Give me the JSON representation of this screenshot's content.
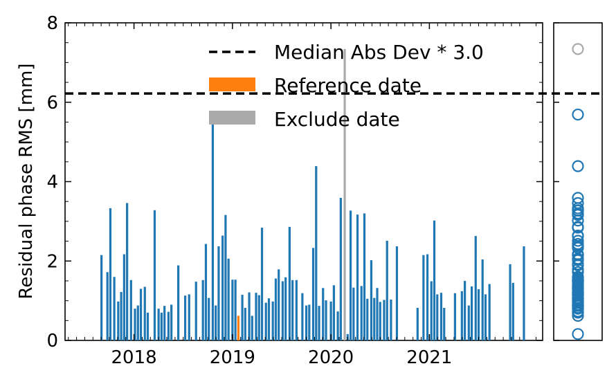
{
  "chart_data": {
    "type": "bar",
    "ylabel": "Residual phase RMS [mm]",
    "ylim": [
      0,
      8
    ],
    "yticks": [
      "0",
      "2",
      "4",
      "6",
      "8"
    ],
    "xlim": [
      2017.3,
      2022.15
    ],
    "xticks": [
      {
        "value": 2018.0,
        "label": "2018"
      },
      {
        "value": 2019.0,
        "label": "2019"
      },
      {
        "value": 2020.0,
        "label": "2020"
      },
      {
        "value": 2021.0,
        "label": "2021"
      }
    ],
    "threshold": 6.22,
    "legend_position": "top-right",
    "legend": [
      {
        "label": "Median Abs Dev * 3.0",
        "kind": "dashed-line",
        "color": "#000000"
      },
      {
        "label": "Reference date",
        "kind": "patch",
        "color": "#ff7f0e"
      },
      {
        "label": "Exclude date",
        "kind": "patch",
        "color": "#aaaaaa"
      }
    ],
    "colors": {
      "normal": "#1f77b4",
      "reference": "#ff7f0e",
      "exclude": "#aaaaaa"
    },
    "bars": [
      {
        "x": 2017.67,
        "y": 2.15
      },
      {
        "x": 2017.73,
        "y": 1.72
      },
      {
        "x": 2017.76,
        "y": 3.33
      },
      {
        "x": 2017.8,
        "y": 1.6
      },
      {
        "x": 2017.84,
        "y": 0.98
      },
      {
        "x": 2017.87,
        "y": 1.22
      },
      {
        "x": 2017.9,
        "y": 2.17
      },
      {
        "x": 2017.93,
        "y": 3.46
      },
      {
        "x": 2017.97,
        "y": 1.52
      },
      {
        "x": 2018.01,
        "y": 0.8
      },
      {
        "x": 2018.04,
        "y": 0.88
      },
      {
        "x": 2018.07,
        "y": 1.3
      },
      {
        "x": 2018.11,
        "y": 1.35
      },
      {
        "x": 2018.14,
        "y": 0.7
      },
      {
        "x": 2018.21,
        "y": 3.28
      },
      {
        "x": 2018.25,
        "y": 0.8
      },
      {
        "x": 2018.28,
        "y": 0.7
      },
      {
        "x": 2018.31,
        "y": 0.87
      },
      {
        "x": 2018.35,
        "y": 0.72
      },
      {
        "x": 2018.38,
        "y": 0.9
      },
      {
        "x": 2018.45,
        "y": 1.89
      },
      {
        "x": 2018.52,
        "y": 1.13
      },
      {
        "x": 2018.56,
        "y": 1.16
      },
      {
        "x": 2018.63,
        "y": 1.48
      },
      {
        "x": 2018.7,
        "y": 1.52
      },
      {
        "x": 2018.73,
        "y": 2.43
      },
      {
        "x": 2018.76,
        "y": 1.07
      },
      {
        "x": 2018.8,
        "y": 5.69
      },
      {
        "x": 2018.83,
        "y": 0.88
      },
      {
        "x": 2018.86,
        "y": 2.37
      },
      {
        "x": 2018.9,
        "y": 2.64
      },
      {
        "x": 2018.93,
        "y": 3.16
      },
      {
        "x": 2018.96,
        "y": 2.06
      },
      {
        "x": 2019.0,
        "y": 1.53
      },
      {
        "x": 2019.03,
        "y": 1.53
      },
      {
        "x": 2019.06,
        "y": 0.62,
        "kind": "reference"
      },
      {
        "x": 2019.1,
        "y": 1.15
      },
      {
        "x": 2019.13,
        "y": 0.82
      },
      {
        "x": 2019.17,
        "y": 1.21
      },
      {
        "x": 2019.2,
        "y": 0.62
      },
      {
        "x": 2019.24,
        "y": 1.2
      },
      {
        "x": 2019.27,
        "y": 1.14
      },
      {
        "x": 2019.3,
        "y": 2.84
      },
      {
        "x": 2019.34,
        "y": 0.95
      },
      {
        "x": 2019.37,
        "y": 1.06
      },
      {
        "x": 2019.41,
        "y": 0.98
      },
      {
        "x": 2019.44,
        "y": 1.56
      },
      {
        "x": 2019.47,
        "y": 1.79
      },
      {
        "x": 2019.51,
        "y": 1.49
      },
      {
        "x": 2019.54,
        "y": 1.59
      },
      {
        "x": 2019.58,
        "y": 2.86
      },
      {
        "x": 2019.61,
        "y": 1.52
      },
      {
        "x": 2019.65,
        "y": 1.52
      },
      {
        "x": 2019.71,
        "y": 1.19
      },
      {
        "x": 2019.75,
        "y": 0.88
      },
      {
        "x": 2019.78,
        "y": 0.9
      },
      {
        "x": 2019.82,
        "y": 2.33
      },
      {
        "x": 2019.85,
        "y": 4.39
      },
      {
        "x": 2019.88,
        "y": 0.87
      },
      {
        "x": 2019.92,
        "y": 1.32
      },
      {
        "x": 2019.95,
        "y": 1.01
      },
      {
        "x": 2020.0,
        "y": 0.98
      },
      {
        "x": 2020.03,
        "y": 1.39
      },
      {
        "x": 2020.07,
        "y": 0.73
      },
      {
        "x": 2020.1,
        "y": 3.59
      },
      {
        "x": 2020.14,
        "y": 7.34,
        "kind": "exclude"
      },
      {
        "x": 2020.17,
        "y": 0.16
      },
      {
        "x": 2020.2,
        "y": 3.27
      },
      {
        "x": 2020.23,
        "y": 1.33
      },
      {
        "x": 2020.27,
        "y": 3.17
      },
      {
        "x": 2020.31,
        "y": 1.37
      },
      {
        "x": 2020.34,
        "y": 3.2
      },
      {
        "x": 2020.37,
        "y": 1.05
      },
      {
        "x": 2020.41,
        "y": 2.02
      },
      {
        "x": 2020.44,
        "y": 1.07
      },
      {
        "x": 2020.47,
        "y": 1.32
      },
      {
        "x": 2020.5,
        "y": 0.97
      },
      {
        "x": 2020.54,
        "y": 1.02
      },
      {
        "x": 2020.57,
        "y": 2.51
      },
      {
        "x": 2020.61,
        "y": 1.03
      },
      {
        "x": 2020.67,
        "y": 2.37
      },
      {
        "x": 2020.88,
        "y": 0.82
      },
      {
        "x": 2020.94,
        "y": 2.15
      },
      {
        "x": 2020.98,
        "y": 2.17
      },
      {
        "x": 2021.02,
        "y": 1.49
      },
      {
        "x": 2021.05,
        "y": 3.02
      },
      {
        "x": 2021.08,
        "y": 1.16
      },
      {
        "x": 2021.12,
        "y": 1.2
      },
      {
        "x": 2021.15,
        "y": 0.82
      },
      {
        "x": 2021.26,
        "y": 1.19
      },
      {
        "x": 2021.33,
        "y": 1.24
      },
      {
        "x": 2021.36,
        "y": 1.5
      },
      {
        "x": 2021.4,
        "y": 0.88
      },
      {
        "x": 2021.43,
        "y": 1.36
      },
      {
        "x": 2021.47,
        "y": 2.63
      },
      {
        "x": 2021.5,
        "y": 1.29
      },
      {
        "x": 2021.54,
        "y": 2.04
      },
      {
        "x": 2021.57,
        "y": 1.16
      },
      {
        "x": 2021.61,
        "y": 1.42
      },
      {
        "x": 2021.82,
        "y": 1.92
      },
      {
        "x": 2021.85,
        "y": 1.45
      },
      {
        "x": 2021.96,
        "y": 2.37
      }
    ]
  }
}
